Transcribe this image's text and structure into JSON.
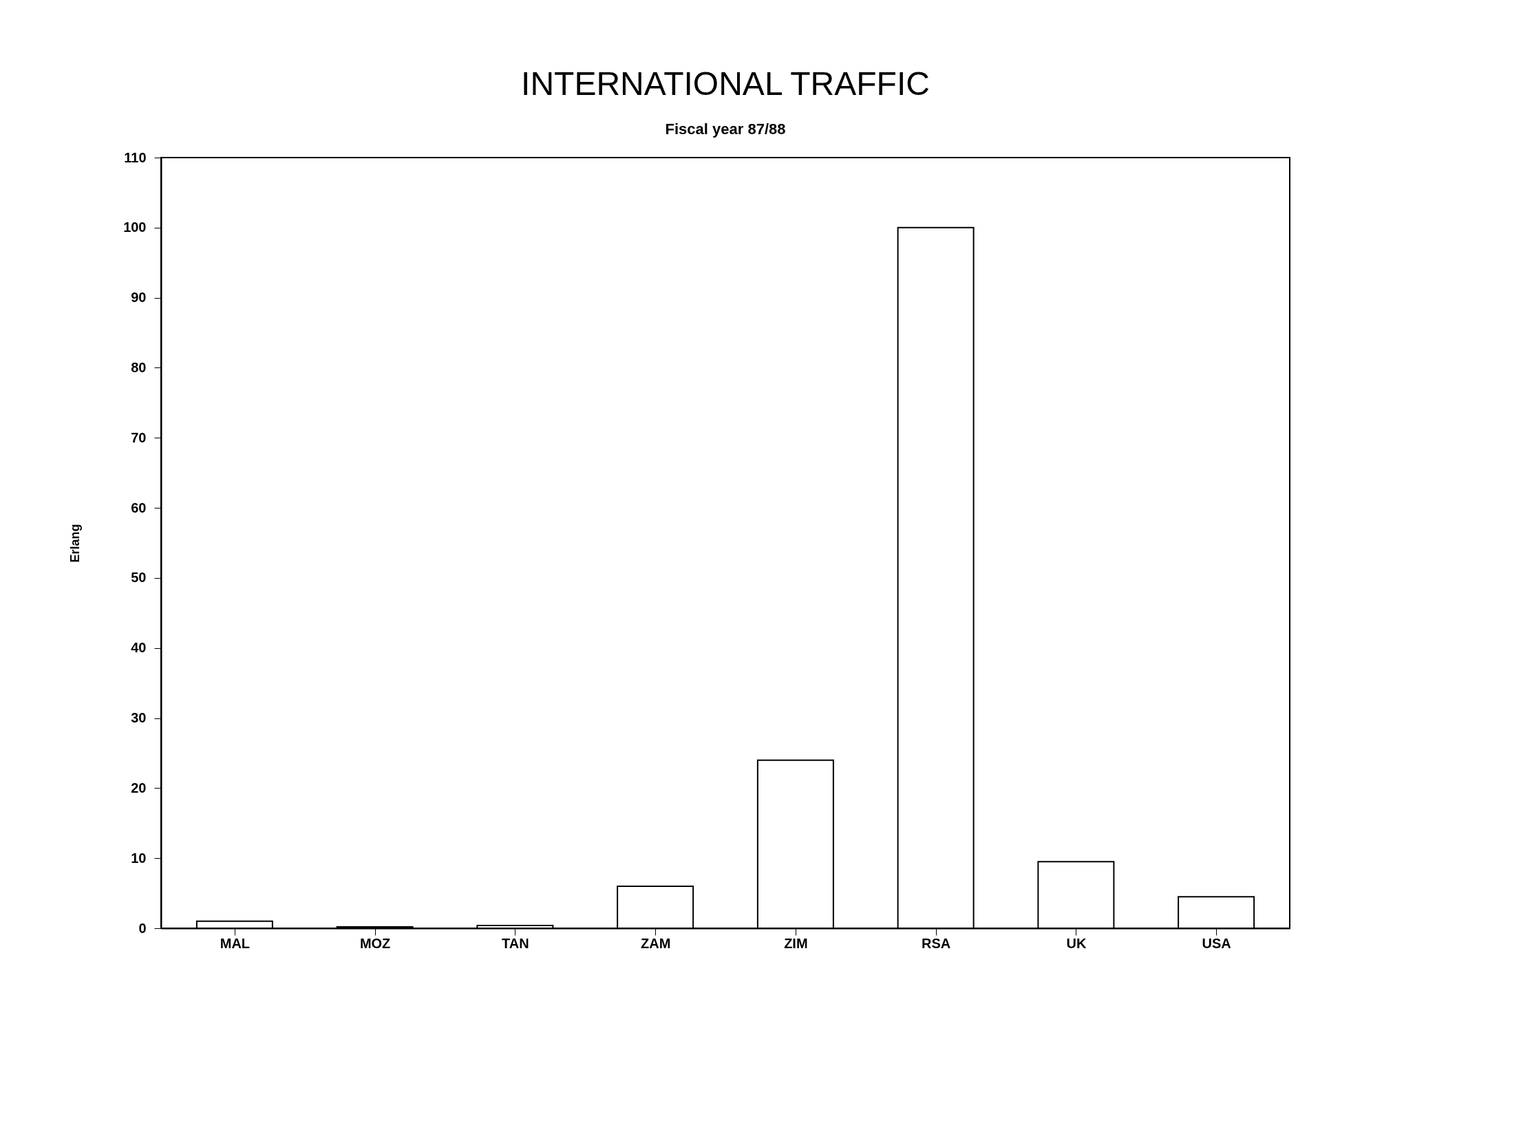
{
  "chart_data": {
    "type": "bar",
    "title": "INTERNATIONAL TRAFFIC",
    "subtitle": "Fiscal year 87/88",
    "ylabel": "Erlang",
    "categories": [
      "MAL",
      "MOZ",
      "TAN",
      "ZAM",
      "ZIM",
      "RSA",
      "UK",
      "USA"
    ],
    "values": [
      1,
      0.2,
      0.4,
      6,
      24,
      100,
      9.5,
      4.5
    ],
    "color": "#ffffff",
    "ylim": [
      0,
      110
    ],
    "yticks": [
      0,
      10,
      20,
      30,
      40,
      50,
      60,
      70,
      80,
      90,
      100,
      110
    ],
    "grid": false
  }
}
